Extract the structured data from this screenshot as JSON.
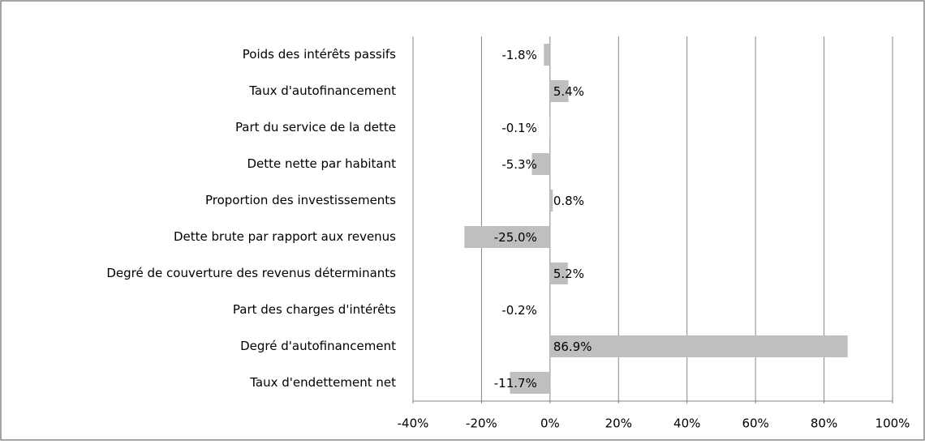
{
  "chart_data": {
    "type": "hbar",
    "categories": [
      "Poids des intérêts passifs",
      "Taux d'autofinancement",
      "Part du service de la dette",
      "Dette nette par habitant",
      "Proportion des investissements",
      "Dette brute par rapport aux revenus",
      "Degré de couverture des revenus déterminants",
      "Part des charges d'intérêts",
      "Degré d'autofinancement",
      "Taux d'endettement net"
    ],
    "values": [
      -1.8,
      5.4,
      -0.1,
      -5.3,
      0.8,
      -25.0,
      5.2,
      -0.2,
      86.9,
      -11.7
    ],
    "value_labels": [
      "-1.8%",
      "5.4%",
      "-0.1%",
      "-5.3%",
      "0.8%",
      "-25.0%",
      "5.2%",
      "-0.2%",
      "86.9%",
      "-11.7%"
    ],
    "color": "#bfbfbf",
    "xlim": [
      -40,
      100
    ],
    "xticks": [
      {
        "value": -40,
        "label": "-40%"
      },
      {
        "value": -20,
        "label": "-20%"
      },
      {
        "value": 0,
        "label": "0%"
      },
      {
        "value": 20,
        "label": "20%"
      },
      {
        "value": 40,
        "label": "40%"
      },
      {
        "value": 60,
        "label": "60%"
      },
      {
        "value": 80,
        "label": "80%"
      },
      {
        "value": 100,
        "label": "100%"
      }
    ],
    "grid": true
  }
}
